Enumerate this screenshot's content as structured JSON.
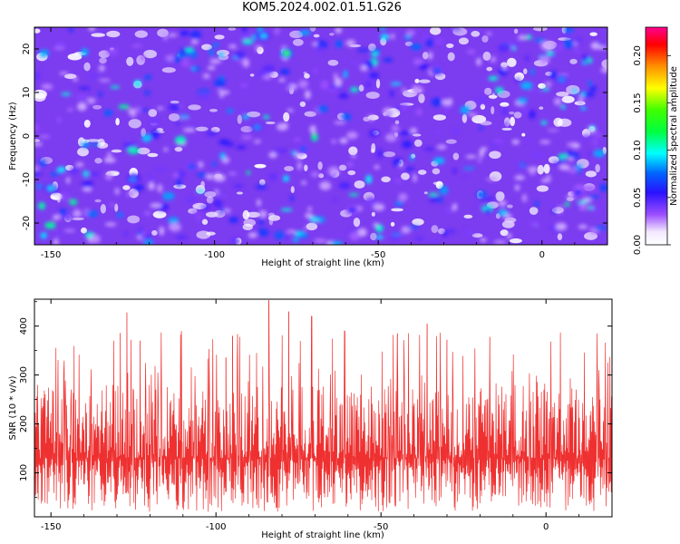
{
  "title": "KOM5.2024.002.01.51.G26",
  "chart_data": [
    {
      "type": "heatmap",
      "xlabel": "Height of straight line (km)",
      "ylabel": "Frequency (Hz)",
      "xlim": [
        -155,
        20
      ],
      "ylim": [
        -25,
        25
      ],
      "xticks": [
        -150,
        -100,
        -50,
        0
      ],
      "yticks": [
        -20,
        -10,
        0,
        10,
        20
      ],
      "colorbar": {
        "label": "Normalized spectral amplitude",
        "range": [
          0,
          0.23
        ],
        "ticks": [
          "0.00",
          "0.05",
          "0.10",
          "0.15",
          "0.20"
        ]
      },
      "hotspots": [
        {
          "x": -150,
          "y": -12,
          "value": 0.09
        },
        {
          "x": -125,
          "y": -10,
          "value": 0.08
        },
        {
          "x": -107,
          "y": -7,
          "value": 0.07
        },
        {
          "x": -87,
          "y": 2,
          "value": 0.08
        },
        {
          "x": -85,
          "y": 23,
          "value": 0.09
        },
        {
          "x": -78,
          "y": 19,
          "value": 0.14
        },
        {
          "x": -73,
          "y": -3,
          "value": 0.07
        },
        {
          "x": -58,
          "y": -17,
          "value": 0.06
        },
        {
          "x": -32,
          "y": 15,
          "value": 0.07
        },
        {
          "x": 6,
          "y": 13,
          "value": 0.08
        },
        {
          "x": 11,
          "y": -13,
          "value": 0.06
        }
      ],
      "grid": false,
      "legend": "none"
    },
    {
      "type": "line",
      "xlabel": "Height of straight line (km)",
      "ylabel": "SNR (10 * v/v)",
      "xlim": [
        -155,
        20
      ],
      "ylim": [
        10,
        455
      ],
      "xticks": [
        -150,
        -100,
        -50,
        0
      ],
      "yticks": [
        100,
        200,
        300,
        400
      ],
      "baseline": 130,
      "peaks": [
        {
          "x": -129,
          "y": 386
        },
        {
          "x": -127,
          "y": 428
        },
        {
          "x": -123,
          "y": 370
        },
        {
          "x": -97,
          "y": 336
        },
        {
          "x": -95,
          "y": 380
        },
        {
          "x": -84,
          "y": 453
        },
        {
          "x": -78,
          "y": 430
        },
        {
          "x": -71,
          "y": 420
        },
        {
          "x": -61,
          "y": 390
        },
        {
          "x": -45,
          "y": 385
        },
        {
          "x": -36,
          "y": 405
        },
        {
          "x": -30,
          "y": 372
        },
        {
          "x": -17,
          "y": 378
        },
        {
          "x": 16,
          "y": 310
        }
      ],
      "color": "#ef3030",
      "grid": false,
      "legend": "none"
    }
  ]
}
